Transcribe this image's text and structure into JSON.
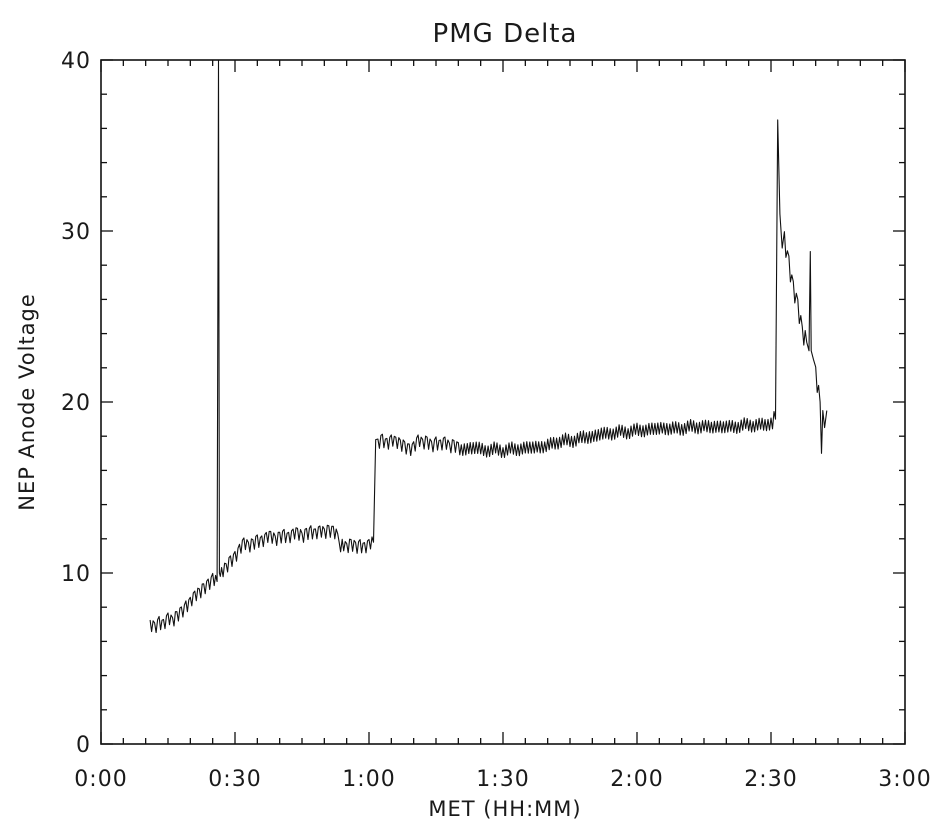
{
  "chart_data": {
    "type": "line",
    "title": "PMG Delta",
    "xlabel": "MET (HH:MM)",
    "ylabel": "NEP Anode  Voltage",
    "x_unit": "minutes",
    "xlim": [
      0,
      180
    ],
    "ylim": [
      0,
      40
    ],
    "x_ticks": [
      0,
      30,
      60,
      90,
      120,
      150,
      180
    ],
    "x_tick_labels": [
      "0:00",
      "0:30",
      "1:00",
      "1:30",
      "2:00",
      "2:30",
      "3:00"
    ],
    "x_minor_step": 5,
    "y_ticks": [
      0,
      10,
      20,
      30,
      40
    ],
    "y_tick_labels": [
      "0",
      "10",
      "20",
      "30",
      "40"
    ],
    "y_minor_step": 2,
    "grid": false,
    "legend": "none",
    "series": [
      {
        "color": "#111111",
        "x": [
          11,
          12,
          13,
          14,
          15,
          16,
          17,
          18,
          19,
          20,
          21,
          22,
          23,
          24,
          25,
          26,
          26.3,
          26.5,
          26.7,
          27,
          28,
          29,
          30,
          31,
          32,
          33,
          34,
          35,
          36,
          37,
          38,
          39,
          40,
          41,
          42,
          43,
          44,
          45,
          46,
          47,
          48,
          49,
          50,
          51,
          52,
          53,
          53.3,
          54,
          55,
          56,
          57,
          58,
          59,
          60,
          61,
          61.5,
          62,
          63,
          64,
          65,
          66,
          67,
          68,
          69,
          70,
          71,
          72,
          73,
          74,
          75,
          76,
          77,
          78,
          79,
          80,
          82,
          84,
          86,
          88,
          90,
          92,
          94,
          96,
          98,
          100,
          102,
          104,
          106,
          108,
          110,
          112,
          114,
          116,
          118,
          120,
          122,
          124,
          126,
          128,
          130,
          132,
          134,
          136,
          138,
          140,
          142,
          144,
          146,
          148,
          150,
          151,
          151.5,
          152,
          152.5,
          153,
          154,
          155,
          156,
          157,
          158,
          158.5,
          158.8,
          159,
          159.5,
          160,
          161,
          161.3,
          161.6,
          162,
          162.5
        ],
        "y": [
          7.0,
          6.8,
          7.1,
          6.9,
          7.3,
          7.1,
          7.5,
          7.7,
          8.0,
          8.2,
          8.6,
          8.8,
          9.1,
          9.3,
          9.6,
          9.5,
          40,
          10.0,
          9.8,
          10.0,
          10.3,
          10.7,
          10.9,
          11.3,
          11.7,
          11.5,
          11.7,
          11.9,
          11.8,
          12.0,
          12.1,
          11.9,
          12.1,
          12.2,
          12.0,
          12.2,
          12.3,
          12.1,
          12.3,
          12.4,
          12.2,
          12.4,
          12.3,
          12.5,
          12.4,
          12.3,
          11.5,
          11.6,
          11.4,
          11.7,
          11.5,
          11.6,
          11.4,
          11.6,
          11.8,
          17.8,
          17.6,
          17.8,
          17.5,
          17.7,
          17.6,
          17.5,
          17.4,
          17.2,
          17.3,
          17.7,
          17.5,
          17.7,
          17.4,
          17.6,
          17.4,
          17.6,
          17.3,
          17.5,
          17.3,
          17.2,
          17.4,
          17.1,
          17.3,
          17.1,
          17.3,
          17.2,
          17.4,
          17.3,
          17.5,
          17.6,
          17.8,
          17.7,
          18.0,
          17.9,
          18.2,
          18.1,
          18.3,
          18.2,
          18.4,
          18.3,
          18.5,
          18.4,
          18.5,
          18.4,
          18.6,
          18.5,
          18.6,
          18.5,
          18.6,
          18.5,
          18.7,
          18.6,
          18.7,
          18.7,
          19.0,
          36.5,
          31.0,
          29.0,
          29.5,
          28.0,
          26.5,
          25.5,
          24.0,
          23.5,
          23.0,
          28.8,
          23.0,
          22.5,
          21.5,
          20.0,
          17.0,
          19.5,
          18.5,
          19.5
        ]
      }
    ]
  }
}
